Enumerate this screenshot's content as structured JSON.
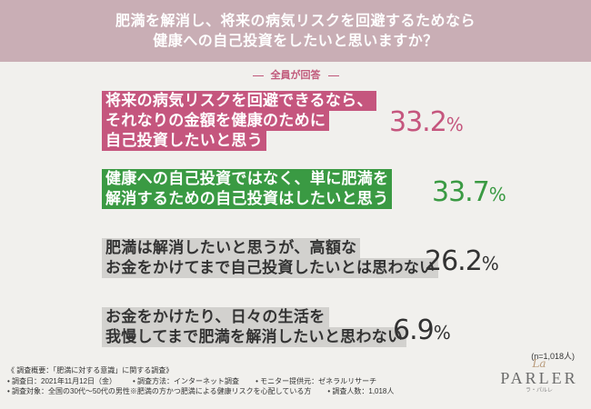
{
  "header": {
    "line1": "肥満を解消し、将来の病気リスクを回避するためなら",
    "line2": "健康への自己投資をしたいと思いますか？"
  },
  "respondent_label": "全員が回答",
  "chart_data": {
    "type": "table",
    "categories": [
      "将来の病気リスクを回避できるなら、それなりの金額を健康のために自己投資したいと思う",
      "健康への自己投資ではなく、単に肥満を解消するための自己投資はしたいと思う",
      "肥満は解消したいと思うが、高額なお金をかけてまで自己投資したいとは思わない",
      "お金をかけたり、日々の生活を我慢してまで肥満を解消したいと思わない"
    ],
    "values": [
      33.2,
      33.7,
      26.2,
      6.9
    ],
    "unit": "%"
  },
  "answers": [
    {
      "lines": [
        "将来の病気リスクを回避できるなら、",
        "それなりの金額を健康のために",
        "自己投資したいと思う"
      ],
      "pct": "33.2",
      "sign": "%",
      "color": "#c5567e"
    },
    {
      "lines": [
        "健康への自己投資ではなく、単に肥満を",
        "解消するための自己投資はしたいと思う"
      ],
      "pct": "33.7",
      "sign": "%",
      "color": "#3a9a43"
    },
    {
      "lines": [
        "肥満は解消したいと思うが、高額な",
        "お金をかけてまで自己投資したいとは思わない"
      ],
      "pct": "26.2",
      "sign": "%",
      "color": "#333333"
    },
    {
      "lines": [
        "お金をかけたり、日々の生活を",
        "我慢してまで肥満を解消したいと思わない"
      ],
      "pct": "6.9",
      "sign": "%",
      "color": "#333333"
    }
  ],
  "n_note": "(n=1,018人)",
  "survey": {
    "title": "《 調査概要：「肥満に対する意識」に関する調査》",
    "date": "• 調査日：2021年11月12日（金）",
    "method": "• 調査方法：インターネット調査",
    "monitor": "• モニター提供元：ゼネラルリサーチ",
    "target": "• 調査対象：全国の30代〜50代の男性※肥満の方かつ肥満による健康リスクを心配している方",
    "count": "• 調査人数：1,018人"
  },
  "logo": {
    "la": "La",
    "name": "PARLER",
    "kana": "ラ・パルレ"
  }
}
